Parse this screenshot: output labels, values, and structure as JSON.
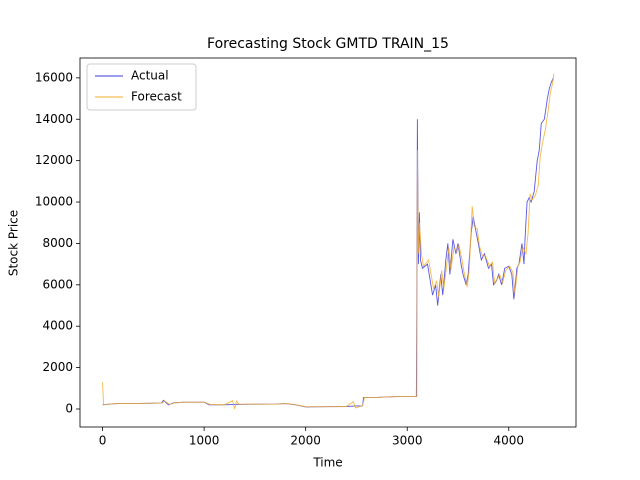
{
  "chart_data": {
    "type": "line",
    "title": "Forecasting Stock GMTD TRAIN_15",
    "x_label": "Time",
    "y_label": "Stock Price",
    "xlim": [
      -222,
      4662
    ],
    "xticks": [
      0,
      1000,
      2000,
      3000,
      4000
    ],
    "ylim": [
      -870,
      16960
    ],
    "yticks": [
      0,
      2000,
      4000,
      6000,
      8000,
      10000,
      12000,
      14000,
      16000
    ],
    "grid": false,
    "legend": "upper left",
    "series": [
      {
        "name": "Actual",
        "color": "#3b3bdd",
        "x": [
          0,
          100,
          200,
          300,
          500,
          580,
          600,
          650,
          700,
          800,
          900,
          1000,
          1050,
          1200,
          1300,
          1500,
          1700,
          1800,
          1900,
          2000,
          2200,
          2400,
          2500,
          2560,
          2570,
          2700,
          2900,
          3090,
          3095,
          3100,
          3110,
          3120,
          3130,
          3150,
          3200,
          3250,
          3280,
          3300,
          3330,
          3350,
          3380,
          3400,
          3420,
          3450,
          3480,
          3500,
          3530,
          3550,
          3580,
          3600,
          3630,
          3650,
          3680,
          3700,
          3730,
          3760,
          3800,
          3830,
          3850,
          3880,
          3900,
          3930,
          3960,
          4000,
          4030,
          4050,
          4080,
          4100,
          4130,
          4150,
          4160,
          4180,
          4200,
          4220,
          4250,
          4280,
          4300,
          4320,
          4350,
          4380,
          4400,
          4420,
          4440
        ],
        "values": [
          200,
          250,
          270,
          260,
          280,
          290,
          420,
          200,
          300,
          330,
          330,
          330,
          200,
          200,
          220,
          230,
          240,
          260,
          200,
          100,
          110,
          120,
          150,
          150,
          550,
          560,
          600,
          600,
          5000,
          14000,
          7000,
          9500,
          7200,
          6800,
          7000,
          5500,
          6000,
          5000,
          6500,
          5500,
          7200,
          8000,
          6500,
          8200,
          7500,
          8000,
          7000,
          6500,
          6000,
          6500,
          8500,
          9300,
          8500,
          8000,
          7200,
          7500,
          6800,
          7000,
          6000,
          6200,
          6500,
          6000,
          6800,
          6900,
          6500,
          5300,
          6800,
          7000,
          8000,
          7000,
          8200,
          10000,
          10200,
          10000,
          10500,
          12000,
          12500,
          13800,
          14000,
          15000,
          15500,
          15800,
          16000
        ]
      },
      {
        "name": "Forecast",
        "color": "#f5ac2a",
        "x": [
          0,
          10,
          100,
          200,
          300,
          500,
          590,
          610,
          660,
          710,
          800,
          900,
          1000,
          1060,
          1200,
          1280,
          1300,
          1320,
          1340,
          1500,
          1700,
          1810,
          1900,
          2000,
          2200,
          2400,
          2470,
          2490,
          2560,
          2580,
          2700,
          2900,
          3095,
          3100,
          3110,
          3120,
          3140,
          3160,
          3210,
          3260,
          3290,
          3310,
          3340,
          3360,
          3390,
          3410,
          3430,
          3460,
          3490,
          3510,
          3540,
          3560,
          3590,
          3610,
          3640,
          3660,
          3690,
          3710,
          3740,
          3770,
          3810,
          3840,
          3860,
          3890,
          3910,
          3940,
          3970,
          4010,
          4040,
          4060,
          4090,
          4110,
          4140,
          4170,
          4190,
          4210,
          4230,
          4260,
          4290,
          4310,
          4330,
          4360,
          4390,
          4410,
          4430,
          4445
        ],
        "values": [
          1300,
          200,
          250,
          270,
          260,
          280,
          300,
          400,
          220,
          290,
          330,
          330,
          330,
          220,
          200,
          400,
          0,
          380,
          240,
          230,
          240,
          260,
          210,
          110,
          110,
          120,
          350,
          50,
          160,
          560,
          560,
          600,
          600,
          12500,
          7500,
          9000,
          7500,
          6900,
          7200,
          5800,
          6200,
          5400,
          6700,
          5800,
          7000,
          7800,
          6700,
          7800,
          7600,
          7900,
          7200,
          6600,
          5900,
          6700,
          9800,
          8800,
          8700,
          7900,
          7400,
          7400,
          6900,
          7100,
          6100,
          6300,
          6500,
          6100,
          6700,
          6900,
          6600,
          5600,
          6900,
          7100,
          7800,
          7500,
          8500,
          10400,
          10100,
          10300,
          10800,
          12200,
          12800,
          13500,
          14500,
          15300,
          15700,
          16200
        ]
      }
    ]
  }
}
